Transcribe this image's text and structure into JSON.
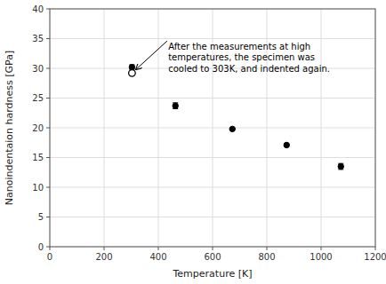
{
  "chart_data": {
    "type": "scatter",
    "xlabel": "Temperature [K]",
    "ylabel": "Nanoindentaion hardness [GPa]",
    "xlim": [
      0,
      1200
    ],
    "ylim": [
      0,
      40
    ],
    "xticks": [
      0,
      200,
      400,
      600,
      800,
      1000,
      1200
    ],
    "yticks": [
      0,
      5,
      10,
      15,
      20,
      25,
      30,
      35,
      40
    ],
    "grid": true,
    "series": [
      {
        "x": [
          303,
          463,
          673,
          873,
          1073
        ],
        "values": [
          30.2,
          23.7,
          19.8,
          17.1,
          13.5
        ],
        "errors": [
          0.4,
          0.5,
          0.0,
          0.0,
          0.5
        ],
        "marker": "filled",
        "color": "#000000"
      },
      {
        "x": [
          303
        ],
        "values": [
          29.2
        ],
        "errors": [
          0.3
        ],
        "marker": "open",
        "color": "#000000"
      }
    ],
    "annotations": [
      {
        "text": "After the measurements at high\ntemperatures, the specimen was\ncooled to 303K, and indented again.",
        "x": 303,
        "y": 29.2,
        "text_x": 430,
        "text_y": 34.5,
        "color": "#000000"
      }
    ]
  }
}
